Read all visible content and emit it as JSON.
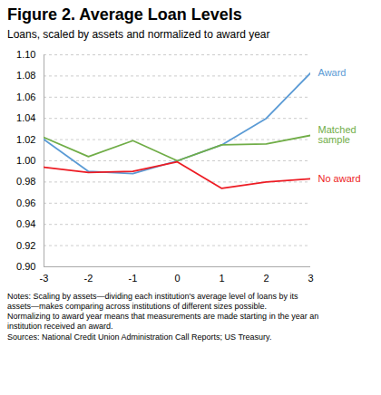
{
  "chart_data": {
    "type": "line",
    "title": "Figure 2. Average Loan Levels",
    "subtitle": "Loans, scaled by assets and normalized to award year",
    "notes": "Notes: Scaling by assets—dividing each institution's average level of loans by its\nassets—makes comparing across institutions of different sizes possible.\nNormalizing to award year means that measurements are made starting in the year an\ninstitution received an award.\nSources: National Credit Union Administration Call Reports; US Treasury.",
    "x": [
      -3,
      -2,
      -1,
      0,
      1,
      2,
      3
    ],
    "series": [
      {
        "name": "Award",
        "color": "#5b9bd5",
        "values": [
          1.02,
          0.99,
          0.988,
          1.0,
          1.015,
          1.04,
          1.083
        ]
      },
      {
        "name": "Matched\nsample",
        "color": "#70ad47",
        "values": [
          1.022,
          1.004,
          1.019,
          1.0,
          1.015,
          1.016,
          1.024
        ]
      },
      {
        "name": "No award",
        "color": "#ed1c24",
        "values": [
          0.994,
          0.989,
          0.99,
          0.999,
          0.974,
          0.98,
          0.983
        ]
      }
    ],
    "xlim": [
      -3,
      3
    ],
    "xticks": [
      -3,
      -2,
      -1,
      0,
      1,
      2,
      3
    ],
    "ylim": [
      0.9,
      1.1
    ],
    "yticks": [
      {
        "value": 0.9,
        "label": "0.90"
      },
      0.92,
      0.94,
      0.96,
      0.98,
      {
        "value": 1.0,
        "label": "1.00"
      },
      1.02,
      1.04,
      1.06,
      1.08,
      {
        "value": 1.1,
        "label": "1.10"
      }
    ],
    "grid": "y"
  }
}
